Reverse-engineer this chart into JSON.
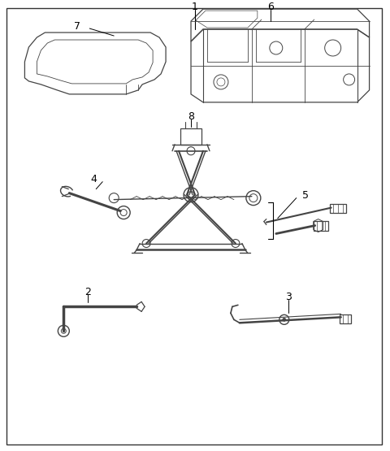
{
  "background_color": "#ffffff",
  "border_color": "#333333",
  "line_color": "#444444",
  "fig_width": 4.8,
  "fig_height": 5.55,
  "dpi": 100
}
